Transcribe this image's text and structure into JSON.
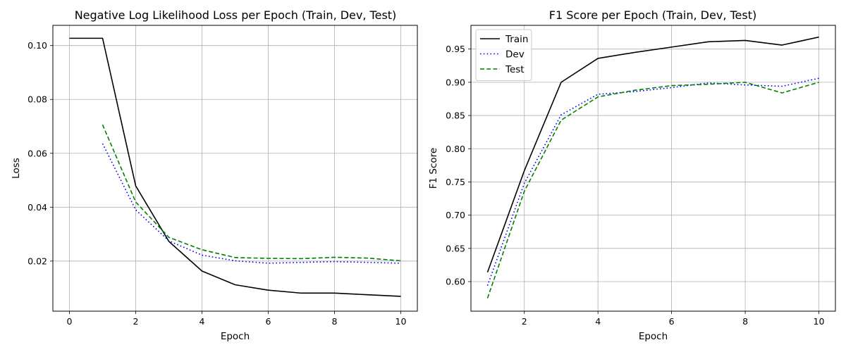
{
  "chart_data": [
    {
      "type": "line",
      "title": "Negative Log Likelihood Loss per Epoch (Train, Dev, Test)",
      "xlabel": "Epoch",
      "ylabel": "Loss",
      "xlim": [
        -0.5,
        10.5
      ],
      "ylim": [
        0.0014,
        0.1075
      ],
      "xticks": [
        0,
        2,
        4,
        6,
        8,
        10
      ],
      "xtick_labels": [
        "0",
        "2",
        "4",
        "6",
        "8",
        "10"
      ],
      "yticks": [
        0.02,
        0.04,
        0.06,
        0.08,
        0.1
      ],
      "ytick_labels": [
        "0.02",
        "0.04",
        "0.06",
        "0.08",
        "0.10"
      ],
      "grid": true,
      "legend": null,
      "series": [
        {
          "key": "train",
          "color": "#000000",
          "dash": "solid",
          "x": [
            0,
            1,
            2,
            3,
            4,
            5,
            6,
            7,
            8,
            9,
            10
          ],
          "y": [
            0.1027,
            0.1027,
            0.0479,
            0.0273,
            0.0163,
            0.0112,
            0.0092,
            0.0081,
            0.0081,
            0.0075,
            0.0069
          ]
        },
        {
          "key": "dev",
          "color": "#0000ff",
          "dash": "dotted",
          "x": [
            1,
            2,
            3,
            4,
            5,
            6,
            7,
            8,
            9,
            10
          ],
          "y": [
            0.0636,
            0.039,
            0.0275,
            0.0222,
            0.0201,
            0.0192,
            0.0195,
            0.0198,
            0.0195,
            0.0192
          ]
        },
        {
          "key": "test",
          "color": "#008000",
          "dash": "dashed",
          "x": [
            1,
            2,
            3,
            4,
            5,
            6,
            7,
            8,
            9,
            10
          ],
          "y": [
            0.0706,
            0.0419,
            0.0288,
            0.0242,
            0.0213,
            0.021,
            0.0209,
            0.0214,
            0.0211,
            0.0201
          ]
        }
      ]
    },
    {
      "type": "line",
      "title": "F1 Score per Epoch (Train, Dev, Test)",
      "xlabel": "Epoch",
      "ylabel": "F1 Score",
      "xlim": [
        0.55,
        10.45
      ],
      "ylim": [
        0.5555,
        0.9857
      ],
      "xticks": [
        2,
        4,
        6,
        8,
        10
      ],
      "xtick_labels": [
        "2",
        "4",
        "6",
        "8",
        "10"
      ],
      "yticks": [
        0.6,
        0.65,
        0.7,
        0.75,
        0.8,
        0.85,
        0.9,
        0.95
      ],
      "ytick_labels": [
        "0.60",
        "0.65",
        "0.70",
        "0.75",
        "0.80",
        "0.85",
        "0.90",
        "0.95"
      ],
      "grid": true,
      "legend": {
        "placement": "upper-left",
        "entries": [
          "Train",
          "Dev",
          "Test"
        ]
      },
      "series": [
        {
          "key": "train",
          "name": "Train",
          "color": "#000000",
          "dash": "solid",
          "x": [
            1,
            2,
            3,
            4,
            5,
            6,
            7,
            8,
            9,
            10
          ],
          "y": [
            0.614,
            0.767,
            0.9,
            0.936,
            0.945,
            0.953,
            0.961,
            0.963,
            0.956,
            0.968
          ]
        },
        {
          "key": "dev",
          "name": "Dev",
          "color": "#0000ff",
          "dash": "dotted",
          "x": [
            1,
            2,
            3,
            4,
            5,
            6,
            7,
            8,
            9,
            10
          ],
          "y": [
            0.594,
            0.748,
            0.851,
            0.882,
            0.886,
            0.892,
            0.899,
            0.896,
            0.894,
            0.906
          ]
        },
        {
          "key": "test",
          "name": "Test",
          "color": "#008000",
          "dash": "dashed",
          "x": [
            1,
            2,
            3,
            4,
            5,
            6,
            7,
            8,
            9,
            10
          ],
          "y": [
            0.575,
            0.736,
            0.843,
            0.878,
            0.888,
            0.895,
            0.897,
            0.9,
            0.884,
            0.9
          ]
        }
      ]
    }
  ]
}
